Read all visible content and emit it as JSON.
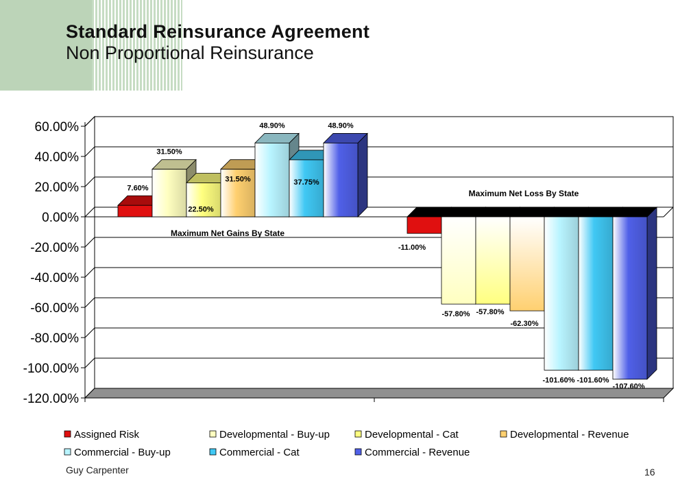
{
  "header": {
    "title": "Standard Reinsurance Agreement",
    "subtitle": "Non Proportional Reinsurance"
  },
  "footer": {
    "company": "Guy Carpenter",
    "page_number": "16"
  },
  "chart_data": {
    "type": "bar",
    "categories": [
      "Maximum Net Gains By State",
      "Maximum Net Loss By State"
    ],
    "ylim": [
      -120,
      60
    ],
    "yticks": [
      "60.00%",
      "40.00%",
      "20.00%",
      "0.00%",
      "-20.00%",
      "-40.00%",
      "-60.00%",
      "-80.00%",
      "-100.00%",
      "-120.00%"
    ],
    "ytick_values": [
      60,
      40,
      20,
      0,
      -20,
      -40,
      -60,
      -80,
      -100,
      -120
    ],
    "grid": true,
    "legend_position": "bottom",
    "series": [
      {
        "name": "Assigned Risk",
        "color": "#e01010",
        "values": [
          7.6,
          -11.0
        ],
        "labels": [
          "7.60%",
          "-11.00%"
        ]
      },
      {
        "name": "Developmental - Buy-up",
        "color": "#ffffc0",
        "values": [
          31.5,
          -57.8
        ],
        "labels": [
          "31.50%",
          "-57.80%"
        ]
      },
      {
        "name": "Developmental - Cat",
        "color": "#ffff80",
        "values": [
          22.5,
          -57.8
        ],
        "labels": [
          "22.50%",
          "-57.80%"
        ]
      },
      {
        "name": "Developmental - Revenue",
        "color": "#ffd070",
        "values": [
          31.5,
          -62.3
        ],
        "labels": [
          "31.50%",
          "-62.30%"
        ]
      },
      {
        "name": "Commercial - Buy-up",
        "color": "#b8f4ff",
        "values": [
          48.9,
          -101.6
        ],
        "labels": [
          "48.90%",
          "-101.60%"
        ]
      },
      {
        "name": "Commercial - Cat",
        "color": "#40c8f4",
        "values": [
          37.75,
          -101.6
        ],
        "labels": [
          "37.75%",
          "-101.60%"
        ]
      },
      {
        "name": "Commercial - Revenue",
        "color": "#5060e8",
        "values": [
          48.9,
          -107.6
        ],
        "labels": [
          "48.90%",
          "-107.60%"
        ]
      }
    ]
  }
}
